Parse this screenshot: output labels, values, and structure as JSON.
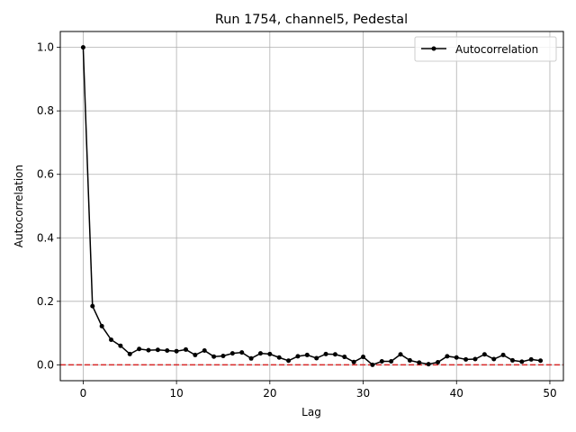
{
  "chart_data": {
    "type": "line",
    "title": "Run 1754, channel5, Pedestal",
    "xlabel": "Lag",
    "ylabel": "Autocorrelation",
    "xlim": [
      -2.45,
      51.45
    ],
    "ylim": [
      -0.05,
      1.05
    ],
    "xticks": [
      0,
      10,
      20,
      30,
      40,
      50
    ],
    "yticks": [
      0.0,
      0.2,
      0.4,
      0.6,
      0.8,
      1.0
    ],
    "xtick_labels": [
      "0",
      "10",
      "20",
      "30",
      "40",
      "50"
    ],
    "ytick_labels": [
      "0.0",
      "0.2",
      "0.4",
      "0.6",
      "0.8",
      "1.0"
    ],
    "grid": true,
    "legend_position": "top-right",
    "series": [
      {
        "name": "Autocorrelation",
        "color": "#000000",
        "marker": "circle",
        "x": [
          0,
          1,
          2,
          3,
          4,
          5,
          6,
          7,
          8,
          9,
          10,
          11,
          12,
          13,
          14,
          15,
          16,
          17,
          18,
          19,
          20,
          21,
          22,
          23,
          24,
          25,
          26,
          27,
          28,
          29,
          30,
          31,
          32,
          33,
          34,
          35,
          36,
          37,
          38,
          39,
          40,
          41,
          42,
          43,
          44,
          45,
          46,
          47,
          48,
          49
        ],
        "y": [
          1.0,
          0.185,
          0.122,
          0.079,
          0.06,
          0.034,
          0.05,
          0.046,
          0.047,
          0.045,
          0.043,
          0.048,
          0.031,
          0.045,
          0.026,
          0.028,
          0.036,
          0.039,
          0.02,
          0.036,
          0.034,
          0.023,
          0.013,
          0.027,
          0.031,
          0.021,
          0.034,
          0.033,
          0.025,
          0.009,
          0.025,
          0.0,
          0.011,
          0.011,
          0.033,
          0.014,
          0.007,
          0.002,
          0.008,
          0.027,
          0.023,
          0.017,
          0.018,
          0.033,
          0.018,
          0.031,
          0.014,
          0.01,
          0.017,
          0.013
        ]
      }
    ],
    "reference_line": {
      "y": 0,
      "color": "#d62728",
      "style": "dashed"
    }
  }
}
